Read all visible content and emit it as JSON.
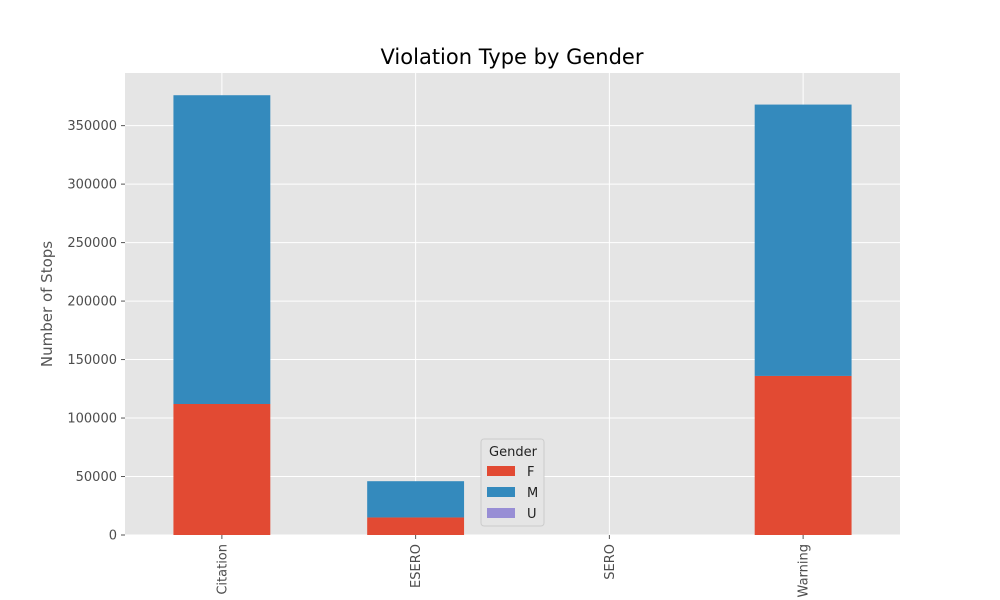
{
  "chart_data": {
    "type": "bar",
    "stacked": true,
    "title": "Violation Type by Gender",
    "xlabel": "",
    "ylabel": "Number of Stops",
    "categories": [
      "Citation",
      "ESERO",
      "SERO",
      "Warning"
    ],
    "series": [
      {
        "name": "F",
        "color": "#E24A33",
        "values": [
          112000,
          15000,
          0,
          136000
        ]
      },
      {
        "name": "M",
        "color": "#348ABD",
        "values": [
          264000,
          31000,
          0,
          232000
        ]
      },
      {
        "name": "U",
        "color": "#988ED5",
        "values": [
          0,
          0,
          0,
          0
        ]
      }
    ],
    "ylim": [
      0,
      395000
    ],
    "yticks": [
      0,
      50000,
      100000,
      150000,
      200000,
      250000,
      300000,
      350000
    ],
    "grid": true,
    "legend": {
      "title": "Gender",
      "placement": "lower-center"
    },
    "style": {
      "background": "#E5E5E5",
      "grid_color": "#ffffff"
    }
  }
}
